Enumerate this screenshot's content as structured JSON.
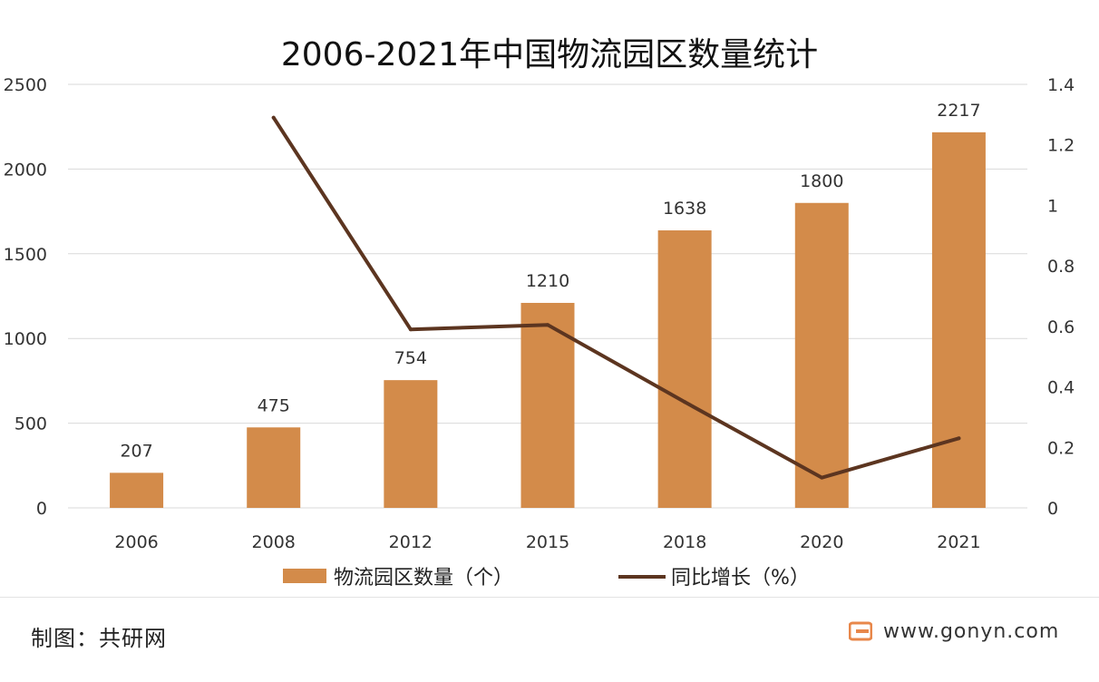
{
  "chart_data": {
    "type": "bar",
    "title": "2006-2021年中国物流园区数量统计",
    "categories": [
      "2006",
      "2008",
      "2012",
      "2015",
      "2018",
      "2020",
      "2021"
    ],
    "series": [
      {
        "name": "物流园区数量（个）",
        "type": "bar",
        "axis": "left",
        "color": "#d38b4a",
        "values": [
          207,
          475,
          754,
          1210,
          1638,
          1800,
          2217
        ],
        "labels": [
          "207",
          "475",
          "754",
          "1210",
          "1638",
          "1800",
          "2217"
        ]
      },
      {
        "name": "同比增长（%）",
        "type": "line",
        "axis": "right",
        "color": "#5c3520",
        "values": [
          null,
          1.29,
          0.59,
          0.605,
          0.35,
          0.1,
          0.23
        ]
      }
    ],
    "ylim_left": [
      0,
      2500
    ],
    "yticks_left": [
      "0",
      "500",
      "1000",
      "1500",
      "2000",
      "2500"
    ],
    "ylim_right": [
      0,
      1.4
    ],
    "yticks_right": [
      "0",
      "0.2",
      "0.4",
      "0.6",
      "0.8",
      "1",
      "1.2",
      "1.4"
    ],
    "grid": true,
    "legend_position": "bottom"
  },
  "footer": {
    "credit": "制图：共研网",
    "watermark": "www.gonyn.com",
    "logo_icon": "gonyn-logo-icon",
    "logo_color": "#e8874a"
  }
}
